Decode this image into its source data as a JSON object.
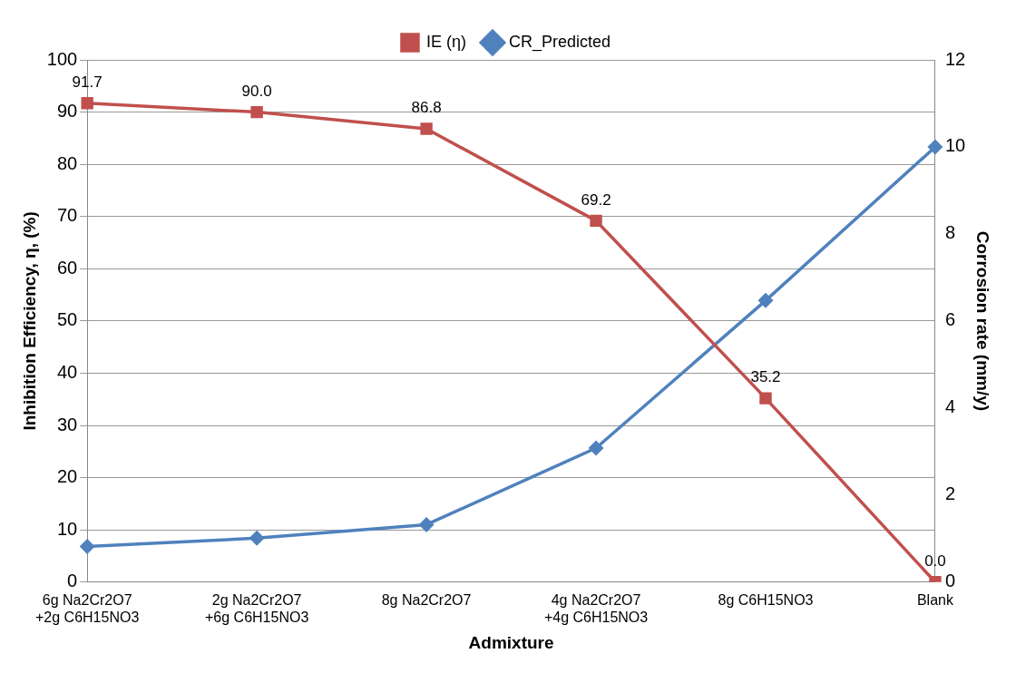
{
  "chart_data": {
    "type": "line",
    "xlabel": "Admixture",
    "ylabel": "Inhibition Efficiency, η, (%)",
    "y2label": "Corrosion rate (mm/y)",
    "categories": [
      "6g Na2Cr2O7\n+2g C6H15NO3",
      "2g Na2Cr2O7\n+6g C6H15NO3",
      "8g Na2Cr2O7",
      "4g Na2Cr2O7\n+4g C6H15NO3",
      "8g C6H15NO3",
      "Blank"
    ],
    "series": [
      {
        "name": "IE (η)",
        "color": "#c0504d",
        "marker": "square",
        "values": [
          91.7,
          90.0,
          86.8,
          69.2,
          35.2,
          0.0
        ],
        "value_labels": [
          "91.7",
          "90.0",
          "86.8",
          "69.2",
          "35.2",
          "0.0"
        ]
      },
      {
        "name": "CR_Predicted",
        "color": "#4f81bd",
        "marker": "diamond",
        "axis": "y2",
        "values": [
          0.82,
          1.01,
          1.32,
          3.08,
          6.47,
          10.0
        ]
      }
    ],
    "ylim": [
      0,
      100
    ],
    "yticks": [
      0,
      10,
      20,
      30,
      40,
      50,
      60,
      70,
      80,
      90,
      100
    ],
    "y2lim": [
      0,
      12
    ],
    "y2ticks": [
      0,
      2,
      4,
      6,
      8,
      10,
      12
    ],
    "grid": "y",
    "legend": "top",
    "line_style": "solid"
  }
}
